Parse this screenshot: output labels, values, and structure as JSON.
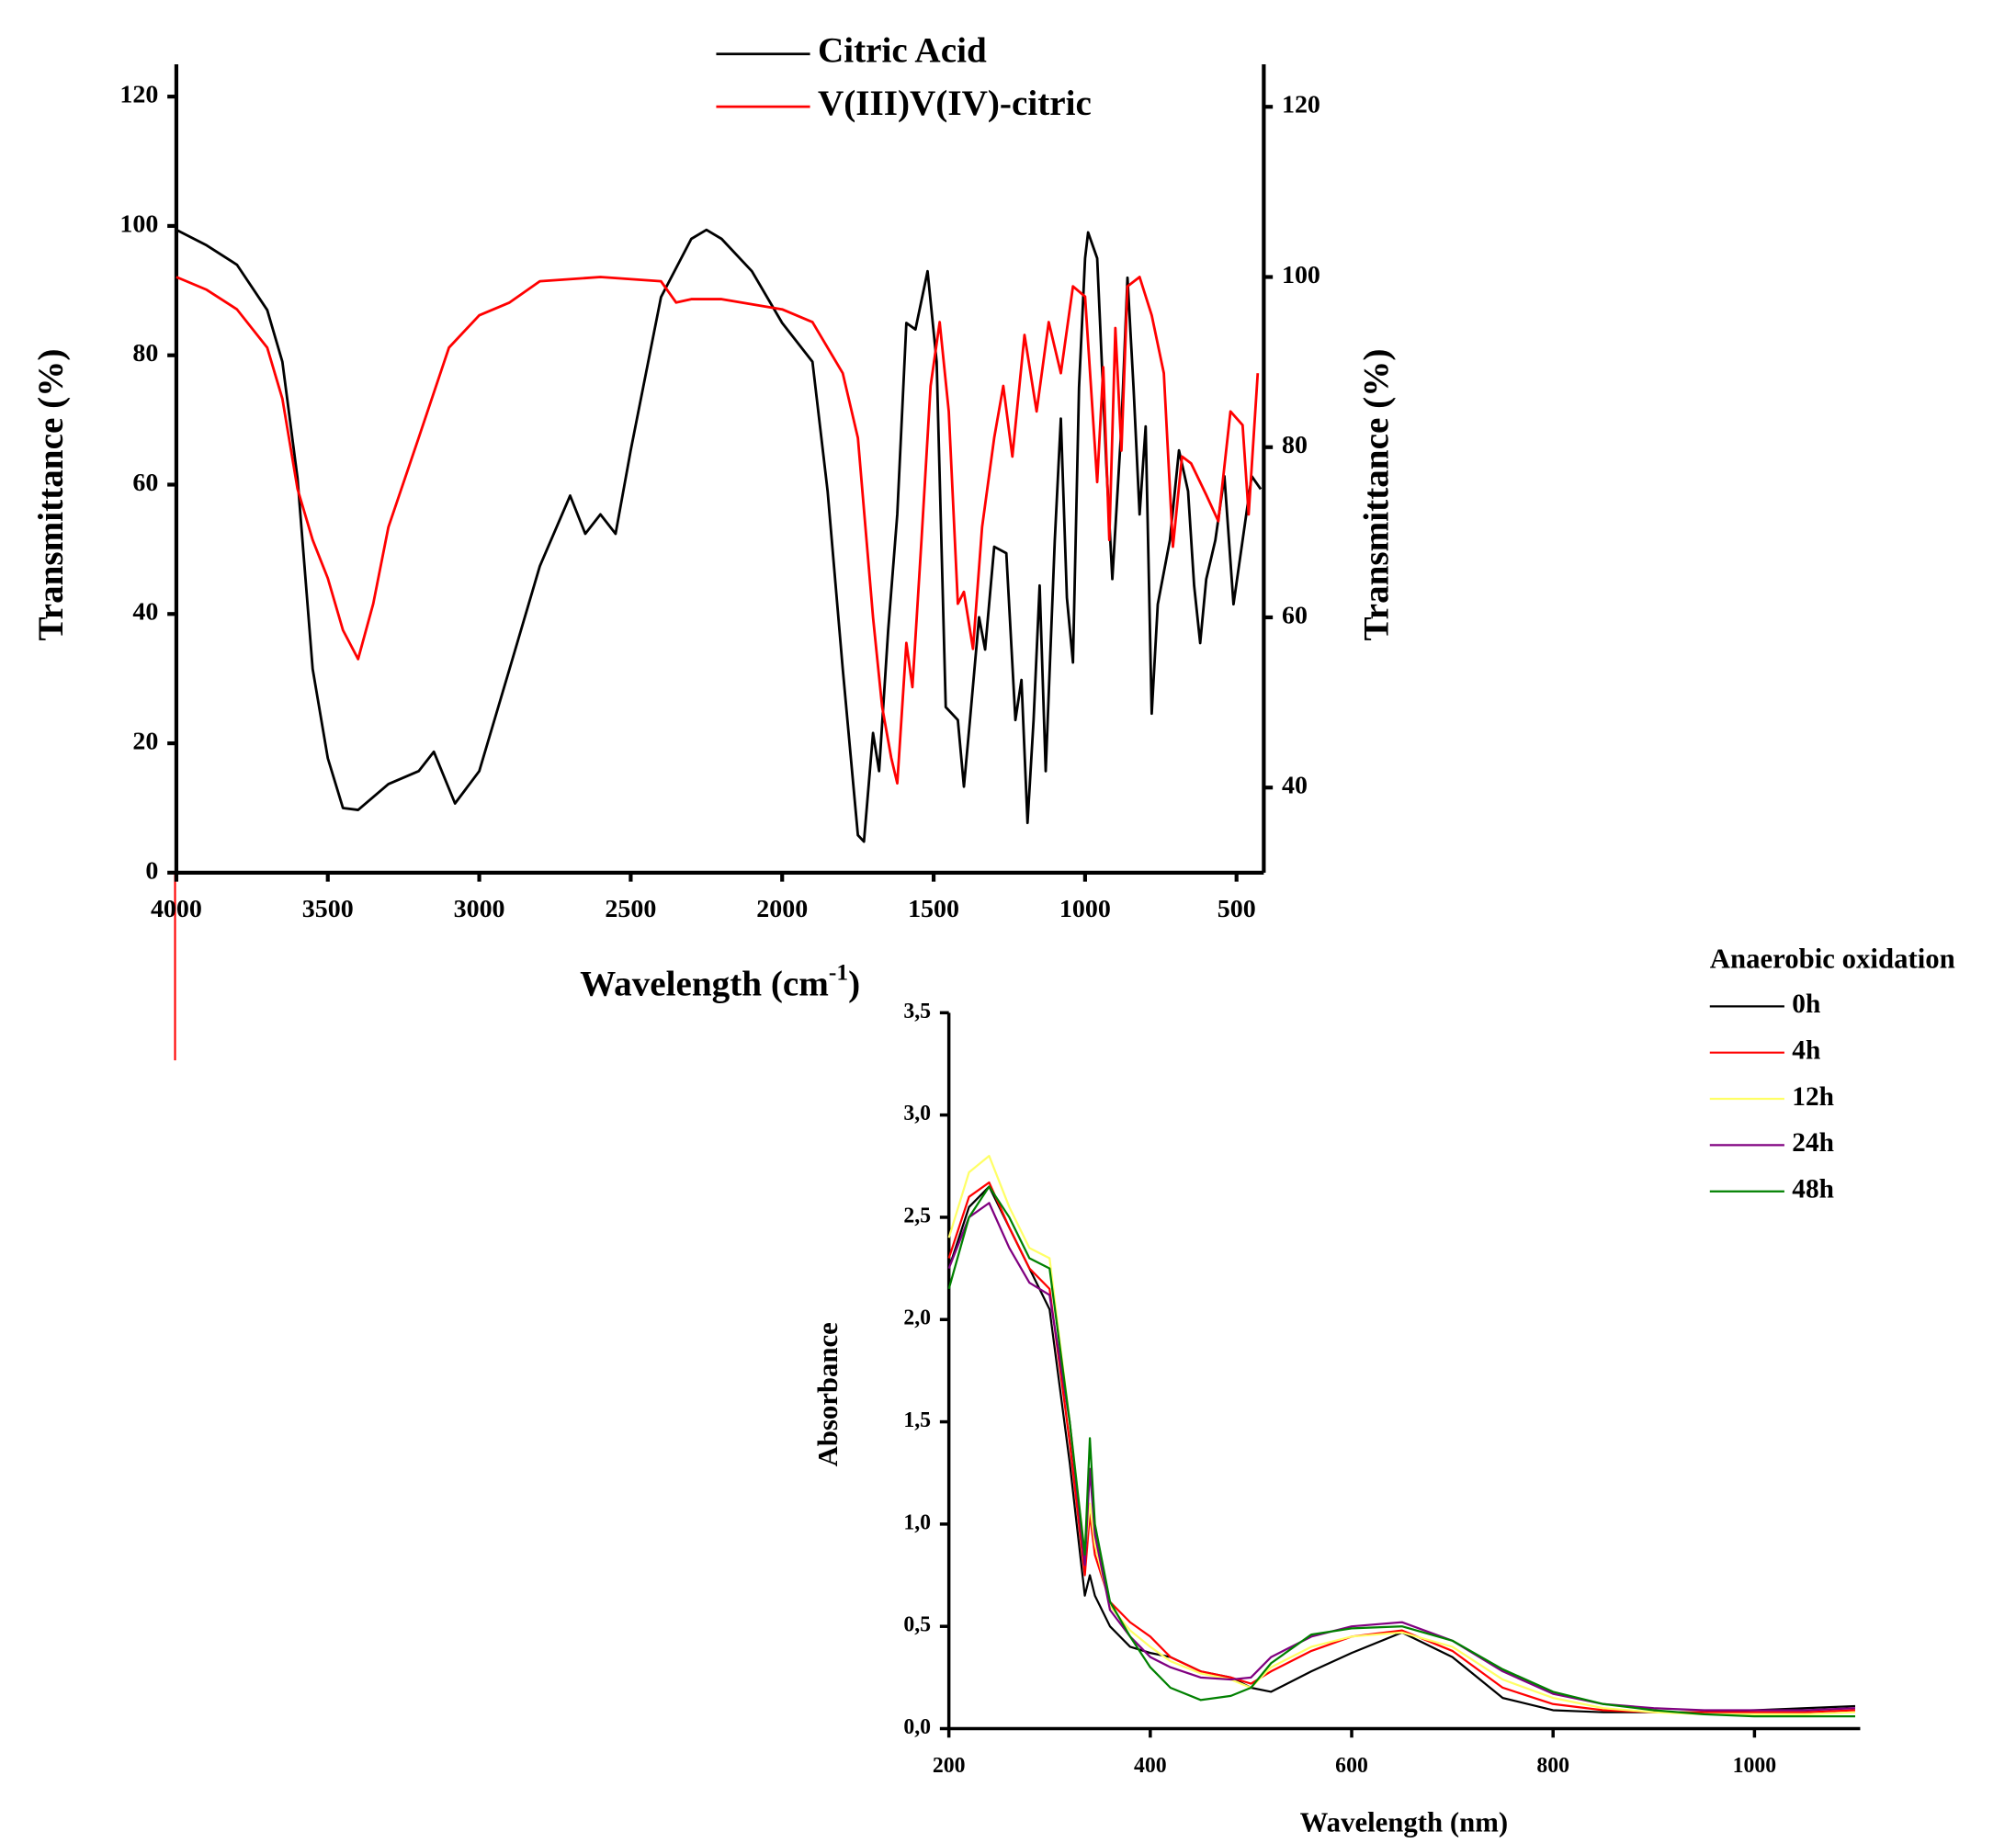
{
  "chart_data": [
    {
      "type": "line",
      "xlabel": {
        "text": "Wavelength (cm",
        "superscript": "-1",
        "suffix": ")"
      },
      "ylabel": "Transmittance (%)",
      "y2label": "Transmittance (%)",
      "xlim": [
        4000,
        410
      ],
      "xticks": [
        4000,
        3500,
        3000,
        2500,
        2000,
        1500,
        1000,
        500
      ],
      "ylim": [
        0,
        125
      ],
      "yticks": [
        0,
        20,
        40,
        60,
        80,
        100,
        120
      ],
      "y2lim": [
        30,
        125
      ],
      "y2ticks": [
        40,
        60,
        80,
        100,
        120
      ],
      "series": [
        {
          "name": "Citric Acid",
          "color": "#000000",
          "x": [
            4000,
            3900,
            3800,
            3700,
            3650,
            3600,
            3550,
            3500,
            3450,
            3400,
            3300,
            3200,
            3150,
            3080,
            3000,
            2950,
            2900,
            2800,
            2700,
            2650,
            2600,
            2550,
            2500,
            2400,
            2300,
            2250,
            2200,
            2100,
            2000,
            1900,
            1850,
            1800,
            1750,
            1730,
            1700,
            1680,
            1650,
            1620,
            1590,
            1560,
            1520,
            1490,
            1460,
            1420,
            1400,
            1380,
            1350,
            1330,
            1300,
            1260,
            1230,
            1210,
            1190,
            1170,
            1150,
            1130,
            1100,
            1080,
            1060,
            1040,
            1020,
            1000,
            990,
            960,
            930,
            910,
            880,
            860,
            840,
            820,
            800,
            780,
            760,
            720,
            690,
            660,
            640,
            620,
            600,
            570,
            540,
            510,
            480,
            450,
            420
          ],
          "values": [
            99.4,
            97,
            94,
            87,
            79,
            61,
            31.5,
            17.7,
            10,
            9.7,
            13.7,
            15.7,
            18.7,
            10.7,
            15.7,
            23.6,
            31.5,
            47.4,
            58.3,
            52.4,
            55.4,
            52.4,
            65.3,
            89,
            98,
            99.4,
            98,
            93,
            85,
            79,
            59,
            31.5,
            5.8,
            4.8,
            21.6,
            15.7,
            37.5,
            55.4,
            85,
            84,
            93,
            79,
            25.6,
            23.6,
            13.3,
            23.6,
            39.5,
            34.5,
            50.4,
            49.4,
            23.6,
            29.8,
            7.7,
            23.6,
            44.4,
            15.7,
            51.4,
            70.2,
            42.5,
            32.5,
            75,
            95,
            99,
            95,
            63.3,
            45.4,
            69,
            92,
            75,
            55.4,
            69,
            24.6,
            41.5,
            51.4,
            65.3,
            59,
            44.4,
            35.5,
            45.4,
            51.4,
            61.3,
            41.5,
            51.4,
            61.3,
            59.3
          ]
        },
        {
          "name": "V(III)V(IV)-citric",
          "color": "#ff0000",
          "axis": "y2",
          "x": [
            4000,
            3900,
            3800,
            3700,
            3650,
            3600,
            3550,
            3500,
            3450,
            3400,
            3350,
            3300,
            3200,
            3100,
            3000,
            2900,
            2800,
            2600,
            2400,
            2350,
            2300,
            2200,
            2000,
            1900,
            1800,
            1750,
            1700,
            1670,
            1640,
            1620,
            1590,
            1570,
            1540,
            1510,
            1480,
            1450,
            1420,
            1400,
            1370,
            1340,
            1300,
            1270,
            1240,
            1200,
            1160,
            1120,
            1080,
            1040,
            1000,
            960,
            940,
            920,
            900,
            880,
            860,
            820,
            780,
            740,
            710,
            680,
            650,
            600,
            560,
            520,
            480,
            460,
            430
          ],
          "values": [
            100,
            98.5,
            96.2,
            91.7,
            85.7,
            75.1,
            69.1,
            64.6,
            58.5,
            55.1,
            61.6,
            70.6,
            81.1,
            91.7,
            95.5,
            97,
            99.5,
            100,
            99.5,
            97,
            97.4,
            97.4,
            96.2,
            94.7,
            88.7,
            81.1,
            60,
            49.5,
            43.5,
            40.5,
            57,
            51.8,
            69.1,
            87.2,
            94.7,
            84.2,
            61.6,
            63,
            56.3,
            70.6,
            81.1,
            87.2,
            78.9,
            93.2,
            84.2,
            94.7,
            88.7,
            98.9,
            97.7,
            75.9,
            89.4,
            69.1,
            94,
            79.6,
            98.9,
            100,
            95.5,
            88.7,
            68.3,
            78.9,
            78.1,
            74.4,
            71.3,
            84.2,
            82.6,
            72.1,
            88.7
          ]
        }
      ]
    },
    {
      "type": "line",
      "xlabel": "Wavelength (nm)",
      "ylabel": "Absorbance",
      "legend_title": "Anaerobic oxidation",
      "xlim": [
        200,
        1105
      ],
      "xticks": [
        200,
        400,
        600,
        800,
        1000
      ],
      "ylim": [
        0,
        3.5
      ],
      "yticks": [
        {
          "value": 0,
          "label": "0,0"
        },
        {
          "value": 0.5,
          "label": "0,5"
        },
        {
          "value": 1,
          "label": "1,0"
        },
        {
          "value": 1.5,
          "label": "1,5"
        },
        {
          "value": 2,
          "label": "2,0"
        },
        {
          "value": 2.5,
          "label": "2,5"
        },
        {
          "value": 3,
          "label": "3,0"
        },
        {
          "value": 3.5,
          "label": "3,5"
        }
      ],
      "x": [
        200,
        220,
        240,
        260,
        280,
        300,
        320,
        335,
        340,
        345,
        360,
        380,
        400,
        420,
        450,
        480,
        500,
        520,
        560,
        600,
        650,
        700,
        750,
        800,
        850,
        900,
        950,
        1000,
        1050,
        1100
      ],
      "series": [
        {
          "name": "0h",
          "color": "#000000",
          "values": [
            2.25,
            2.55,
            2.65,
            2.45,
            2.25,
            2.05,
            1.3,
            0.65,
            0.75,
            0.65,
            0.5,
            0.4,
            0.37,
            0.35,
            0.28,
            0.25,
            0.2,
            0.18,
            0.28,
            0.37,
            0.47,
            0.35,
            0.15,
            0.09,
            0.08,
            0.08,
            0.08,
            0.09,
            0.1,
            0.11
          ]
        },
        {
          "name": "4h",
          "color": "#ff0000",
          "values": [
            2.3,
            2.6,
            2.67,
            2.45,
            2.25,
            2.15,
            1.4,
            0.75,
            1.05,
            0.85,
            0.62,
            0.52,
            0.45,
            0.35,
            0.28,
            0.25,
            0.22,
            0.28,
            0.38,
            0.45,
            0.48,
            0.38,
            0.2,
            0.12,
            0.09,
            0.08,
            0.08,
            0.08,
            0.08,
            0.09
          ]
        },
        {
          "name": "12h",
          "color": "#ffff66",
          "values": [
            2.4,
            2.72,
            2.8,
            2.55,
            2.35,
            2.3,
            1.5,
            0.85,
            1.1,
            0.9,
            0.6,
            0.48,
            0.4,
            0.33,
            0.27,
            0.24,
            0.2,
            0.3,
            0.4,
            0.45,
            0.47,
            0.4,
            0.24,
            0.15,
            0.1,
            0.08,
            0.07,
            0.07,
            0.07,
            0.08
          ]
        },
        {
          "name": "24h",
          "color": "#800080",
          "values": [
            2.25,
            2.5,
            2.57,
            2.35,
            2.18,
            2.12,
            1.5,
            0.8,
            1.27,
            0.95,
            0.58,
            0.45,
            0.35,
            0.3,
            0.25,
            0.24,
            0.25,
            0.35,
            0.45,
            0.5,
            0.52,
            0.43,
            0.28,
            0.17,
            0.12,
            0.1,
            0.09,
            0.09,
            0.09,
            0.1
          ]
        },
        {
          "name": "48h",
          "color": "#008000",
          "values": [
            2.15,
            2.5,
            2.65,
            2.5,
            2.3,
            2.25,
            1.5,
            0.85,
            1.42,
            1.0,
            0.62,
            0.45,
            0.3,
            0.2,
            0.14,
            0.16,
            0.2,
            0.32,
            0.46,
            0.49,
            0.5,
            0.43,
            0.29,
            0.18,
            0.12,
            0.09,
            0.07,
            0.06,
            0.06,
            0.06
          ]
        }
      ]
    }
  ]
}
